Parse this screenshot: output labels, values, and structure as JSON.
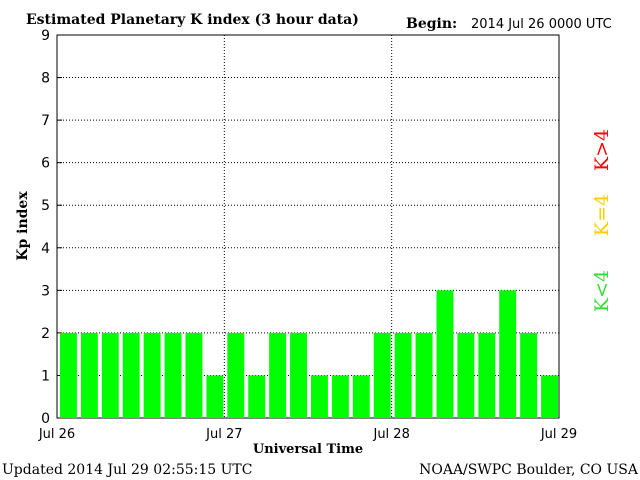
{
  "header": {
    "title": "Estimated Planetary K index (3 hour data)",
    "begin_label": "Begin:",
    "begin_value": "2014 Jul 26 0000 UTC"
  },
  "footer": {
    "updated": "Updated 2014 Jul 29 02:55:15 UTC",
    "source": "NOAA/SWPC Boulder, CO USA"
  },
  "legend": {
    "high": {
      "label": "K>4",
      "color": "#ff0000"
    },
    "equal": {
      "label": "K=4",
      "color": "#ffcc00"
    },
    "low": {
      "label": "K<4",
      "color": "#33dd33"
    }
  },
  "chart_data": {
    "type": "bar",
    "title": "Estimated Planetary K index (3 hour data)",
    "xlabel": "Universal Time",
    "ylabel": "Kp index",
    "ylim": [
      0,
      9
    ],
    "yticks": [
      "0",
      "1",
      "2",
      "3",
      "4",
      "5",
      "6",
      "7",
      "8",
      "9"
    ],
    "xticks": [
      "Jul 26",
      "Jul 27",
      "Jul 28",
      "Jul 29"
    ],
    "interval": "3 hour",
    "values": [
      2,
      2,
      2,
      2,
      2,
      2,
      2,
      1,
      2,
      1,
      2,
      2,
      1,
      1,
      1,
      2,
      2,
      2,
      3,
      2,
      2,
      3,
      2,
      1
    ],
    "bar_color": "#00ff00",
    "grid": true
  }
}
